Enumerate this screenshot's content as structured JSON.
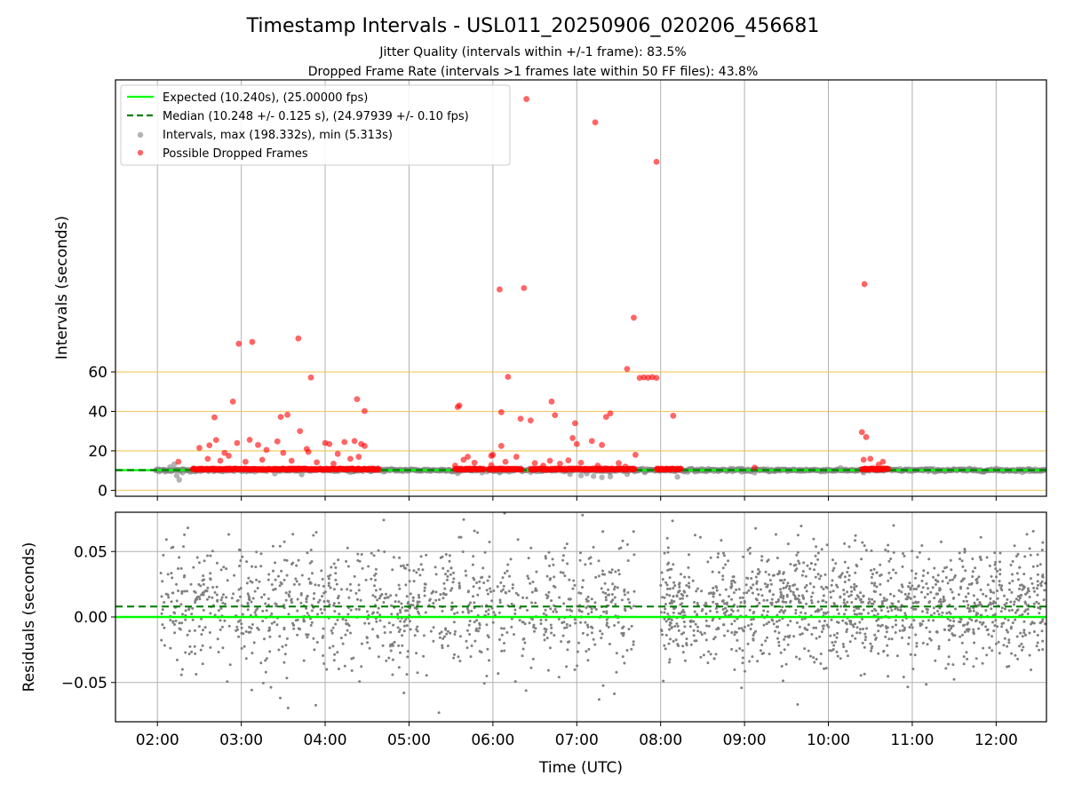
{
  "title": "Timestamp Intervals - USL011_20250906_020206_456681",
  "subtitle_lines": [
    "Jitter Quality (intervals within +/-1 frame): 83.5%",
    "Dropped Frame Rate (intervals >1 frames late within 50 FF files): 43.8%"
  ],
  "colors": {
    "expected": "#00ff00",
    "median": "#008000",
    "intervals": "#808080",
    "dropped": "#ff0000",
    "hline": "#f0c040",
    "grid": "#b0b0b0"
  },
  "chart_data": [
    {
      "type": "scatter",
      "ylabel": "Intervals (seconds)",
      "xlabel": "",
      "x_unit": "time UTC (decimal hours)",
      "xlim": [
        1.5,
        12.6
      ],
      "ylim": [
        -3,
        208
      ],
      "yticks": [
        0,
        20,
        40,
        60
      ],
      "ytick_labels": [
        "0",
        "20",
        "40",
        "60"
      ],
      "horizontal_lines": [
        0,
        20,
        40,
        60
      ],
      "grid": "vertical",
      "legend_position": "upper-left",
      "legend": [
        {
          "key": "expected",
          "label": "Expected (10.240s), (25.00000 fps)",
          "style": "solid-line"
        },
        {
          "key": "median",
          "label": "Median (10.248 +/- 0.125 s), (24.97939 +/- 0.10 fps)",
          "style": "dashed-line"
        },
        {
          "key": "intervals",
          "label": "Intervals, max (198.332s), min (5.313s)",
          "style": "marker"
        },
        {
          "key": "dropped",
          "label": "Possible Dropped Frames",
          "style": "marker"
        }
      ],
      "expected_value": 10.24,
      "median_value": 10.248,
      "interval_baseline_segments": [
        [
          1.98,
          4.65
        ],
        [
          4.65,
          5.55
        ],
        [
          5.55,
          8.0
        ],
        [
          8.0,
          12.6
        ]
      ],
      "dropped_baseline_segments": [
        [
          2.42,
          4.65
        ],
        [
          5.55,
          5.9
        ],
        [
          5.95,
          6.35
        ],
        [
          6.45,
          7.7
        ],
        [
          7.95,
          8.25
        ],
        [
          10.4,
          10.72
        ]
      ],
      "interval_points": [
        {
          "x": 2.02,
          "y": 9.5
        },
        {
          "x": 2.08,
          "y": 10.5
        },
        {
          "x": 2.15,
          "y": 11.8
        },
        {
          "x": 2.2,
          "y": 13.2
        },
        {
          "x": 2.23,
          "y": 7.5
        },
        {
          "x": 2.26,
          "y": 5.3
        },
        {
          "x": 2.3,
          "y": 9.0
        },
        {
          "x": 3.4,
          "y": 8.5
        },
        {
          "x": 3.72,
          "y": 8.0
        },
        {
          "x": 4.3,
          "y": 9.2
        },
        {
          "x": 5.58,
          "y": 8.6
        },
        {
          "x": 6.08,
          "y": 9.0
        },
        {
          "x": 6.45,
          "y": 9.2
        },
        {
          "x": 6.92,
          "y": 8.2
        },
        {
          "x": 7.05,
          "y": 7.5
        },
        {
          "x": 7.12,
          "y": 8.5
        },
        {
          "x": 7.2,
          "y": 7.2
        },
        {
          "x": 7.3,
          "y": 6.6
        },
        {
          "x": 7.4,
          "y": 7.0
        },
        {
          "x": 7.6,
          "y": 8.2
        },
        {
          "x": 8.2,
          "y": 6.8
        },
        {
          "x": 9.12,
          "y": 9.0
        },
        {
          "x": 10.42,
          "y": 9.0
        }
      ],
      "dropped_points": [
        {
          "x": 6.4,
          "y": 198.3
        },
        {
          "x": 7.22,
          "y": 186.5
        },
        {
          "x": 7.95,
          "y": 166.5
        },
        {
          "x": 10.43,
          "y": 104.5
        },
        {
          "x": 6.08,
          "y": 101.8
        },
        {
          "x": 6.37,
          "y": 102.5
        },
        {
          "x": 7.68,
          "y": 87.5
        },
        {
          "x": 3.68,
          "y": 77.0
        },
        {
          "x": 3.13,
          "y": 75.2
        },
        {
          "x": 2.97,
          "y": 74.3
        },
        {
          "x": 3.83,
          "y": 57.2
        },
        {
          "x": 6.18,
          "y": 57.5
        },
        {
          "x": 7.6,
          "y": 61.5
        },
        {
          "x": 7.75,
          "y": 57.0
        },
        {
          "x": 7.8,
          "y": 57.3
        },
        {
          "x": 7.85,
          "y": 57.1
        },
        {
          "x": 7.9,
          "y": 57.4
        },
        {
          "x": 7.95,
          "y": 57.0
        },
        {
          "x": 2.9,
          "y": 45.0
        },
        {
          "x": 4.38,
          "y": 46.2
        },
        {
          "x": 5.58,
          "y": 42.2
        },
        {
          "x": 5.6,
          "y": 43.0
        },
        {
          "x": 6.1,
          "y": 39.6
        },
        {
          "x": 6.7,
          "y": 45.0
        },
        {
          "x": 6.33,
          "y": 36.3
        },
        {
          "x": 6.45,
          "y": 35.4
        },
        {
          "x": 7.35,
          "y": 37.2
        },
        {
          "x": 7.4,
          "y": 39.0
        },
        {
          "x": 6.74,
          "y": 38.1
        },
        {
          "x": 3.47,
          "y": 37.2
        },
        {
          "x": 3.55,
          "y": 38.3
        },
        {
          "x": 2.68,
          "y": 37.0
        },
        {
          "x": 4.47,
          "y": 40.2
        },
        {
          "x": 8.15,
          "y": 37.8
        },
        {
          "x": 10.4,
          "y": 29.5
        },
        {
          "x": 10.45,
          "y": 27.0
        },
        {
          "x": 3.7,
          "y": 30.0
        },
        {
          "x": 6.98,
          "y": 34.0
        },
        {
          "x": 2.5,
          "y": 21.5
        },
        {
          "x": 2.62,
          "y": 22.8
        },
        {
          "x": 2.7,
          "y": 25.5
        },
        {
          "x": 2.8,
          "y": 19.0
        },
        {
          "x": 2.95,
          "y": 24.0
        },
        {
          "x": 3.1,
          "y": 25.6
        },
        {
          "x": 3.2,
          "y": 23.0
        },
        {
          "x": 3.3,
          "y": 20.5
        },
        {
          "x": 3.43,
          "y": 24.8
        },
        {
          "x": 3.5,
          "y": 19.0
        },
        {
          "x": 3.78,
          "y": 21.0
        },
        {
          "x": 4.0,
          "y": 24.0
        },
        {
          "x": 4.05,
          "y": 23.5
        },
        {
          "x": 4.15,
          "y": 18.5
        },
        {
          "x": 4.23,
          "y": 24.5
        },
        {
          "x": 4.35,
          "y": 25.0
        },
        {
          "x": 4.43,
          "y": 23.5
        },
        {
          "x": 4.47,
          "y": 22.5
        },
        {
          "x": 5.7,
          "y": 17.0
        },
        {
          "x": 5.98,
          "y": 17.5
        },
        {
          "x": 6.1,
          "y": 22.5
        },
        {
          "x": 6.28,
          "y": 17.0
        },
        {
          "x": 6.95,
          "y": 26.5
        },
        {
          "x": 7.0,
          "y": 23.5
        },
        {
          "x": 7.18,
          "y": 25.0
        },
        {
          "x": 7.3,
          "y": 23.0
        },
        {
          "x": 7.7,
          "y": 18.0
        },
        {
          "x": 2.6,
          "y": 16.0
        },
        {
          "x": 2.75,
          "y": 15.0
        },
        {
          "x": 2.85,
          "y": 17.5
        },
        {
          "x": 3.05,
          "y": 14.5
        },
        {
          "x": 3.25,
          "y": 15.5
        },
        {
          "x": 3.6,
          "y": 15.0
        },
        {
          "x": 3.9,
          "y": 14.2
        },
        {
          "x": 4.1,
          "y": 13.5
        },
        {
          "x": 4.3,
          "y": 16.0
        },
        {
          "x": 4.4,
          "y": 17.0
        },
        {
          "x": 5.55,
          "y": 12.5
        },
        {
          "x": 5.65,
          "y": 15.5
        },
        {
          "x": 5.78,
          "y": 14.0
        },
        {
          "x": 5.98,
          "y": 12.8
        },
        {
          "x": 6.15,
          "y": 14.5
        },
        {
          "x": 6.5,
          "y": 13.8
        },
        {
          "x": 6.6,
          "y": 12.5
        },
        {
          "x": 6.68,
          "y": 15.0
        },
        {
          "x": 6.8,
          "y": 13.5
        },
        {
          "x": 6.9,
          "y": 15.2
        },
        {
          "x": 7.05,
          "y": 14.0
        },
        {
          "x": 7.25,
          "y": 12.5
        },
        {
          "x": 7.5,
          "y": 13.8
        },
        {
          "x": 7.58,
          "y": 12.0
        },
        {
          "x": 10.42,
          "y": 15.5
        },
        {
          "x": 10.5,
          "y": 16.0
        },
        {
          "x": 10.6,
          "y": 13.0
        },
        {
          "x": 10.65,
          "y": 14.5
        },
        {
          "x": 9.12,
          "y": 11.5
        },
        {
          "x": 2.25,
          "y": 14.5
        },
        {
          "x": 3.8,
          "y": 19.5
        },
        {
          "x": 6.0,
          "y": 18.0
        }
      ]
    },
    {
      "type": "scatter",
      "ylabel": "Residuals (seconds)",
      "xlabel": "Time (UTC)",
      "x_unit": "time UTC (decimal hours)",
      "xlim": [
        1.5,
        12.6
      ],
      "ylim": [
        -0.08,
        0.08
      ],
      "yticks": [
        0.05,
        0.0,
        -0.05
      ],
      "ytick_labels": [
        "0.05",
        "0.00",
        "−0.05"
      ],
      "xticks": [
        2,
        3,
        4,
        5,
        6,
        7,
        8,
        9,
        10,
        11,
        12
      ],
      "xtick_labels": [
        "02:00",
        "03:00",
        "04:00",
        "05:00",
        "06:00",
        "07:00",
        "08:00",
        "09:00",
        "10:00",
        "11:00",
        "12:00"
      ],
      "grid": "both",
      "expected_residual": 0.0,
      "median_residual": 0.008,
      "point_groups": [
        {
          "x_range": [
            2.03,
            7.7
          ],
          "count": 1100,
          "spread": 0.024
        },
        {
          "x_range": [
            8.0,
            12.6
          ],
          "count": 1300,
          "spread": 0.022
        }
      ]
    }
  ]
}
